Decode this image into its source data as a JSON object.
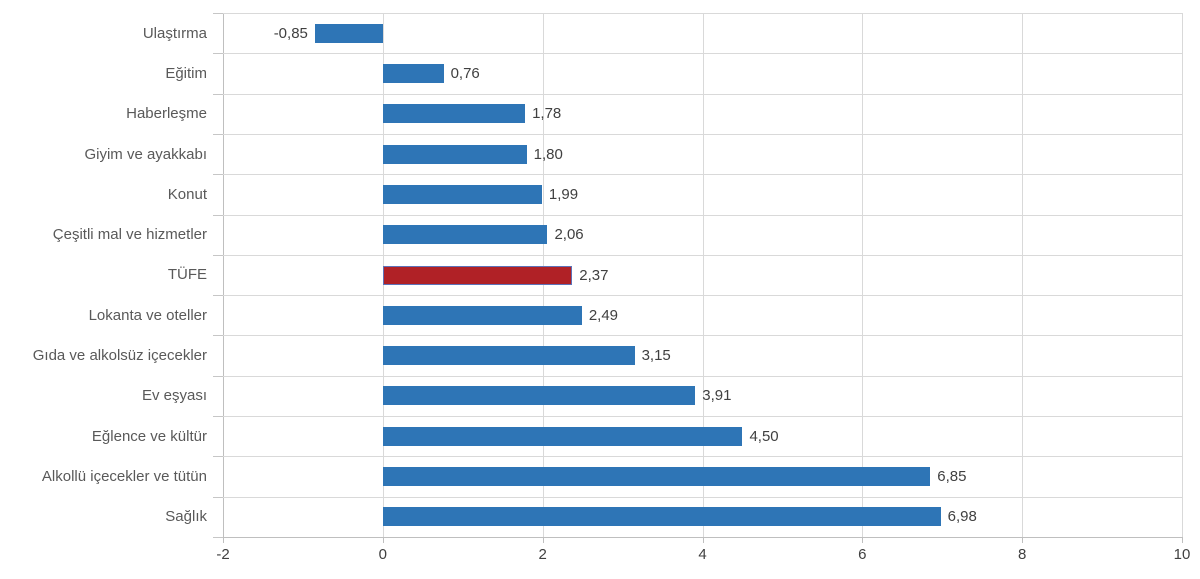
{
  "chart_data": {
    "type": "bar",
    "orientation": "horizontal",
    "categories": [
      "Ulaştırma",
      "Eğitim",
      "Haberleşme",
      "Giyim ve ayakkabı",
      "Konut",
      "Çeşitli mal ve hizmetler",
      "TÜFE",
      "Lokanta ve oteller",
      "Gıda ve alkolsüz içecekler",
      "Ev eşyası",
      "Eğlence ve kültür",
      "Alkollü içecekler ve tütün",
      "Sağlık"
    ],
    "values": [
      -0.85,
      0.76,
      1.78,
      1.8,
      1.99,
      2.06,
      2.37,
      2.49,
      3.15,
      3.91,
      4.5,
      6.85,
      6.98
    ],
    "value_labels": [
      "-0,85",
      "0,76",
      "1,78",
      "1,80",
      "1,99",
      "2,06",
      "2,37",
      "2,49",
      "3,15",
      "3,91",
      "4,50",
      "6,85",
      "6,98"
    ],
    "highlight": {
      "category": "TÜFE",
      "index": 6
    },
    "xlim": [
      -2,
      10
    ],
    "x_ticks": [
      -2,
      0,
      2,
      4,
      6,
      8,
      10
    ],
    "x_tick_labels": [
      "-2",
      "0",
      "2",
      "4",
      "6",
      "8",
      "10"
    ],
    "grid": true,
    "legend": false,
    "colors": {
      "bar": "#2E75B6",
      "highlight_bar": "#B02126",
      "highlight_border": "#5E72B8",
      "gridline": "#D9D9D9",
      "axis_line": "#BFBFBF",
      "tick": "#C6C6C6",
      "value_text": "#404040",
      "category_text": "#595959",
      "background": "#FFFFFF"
    }
  }
}
